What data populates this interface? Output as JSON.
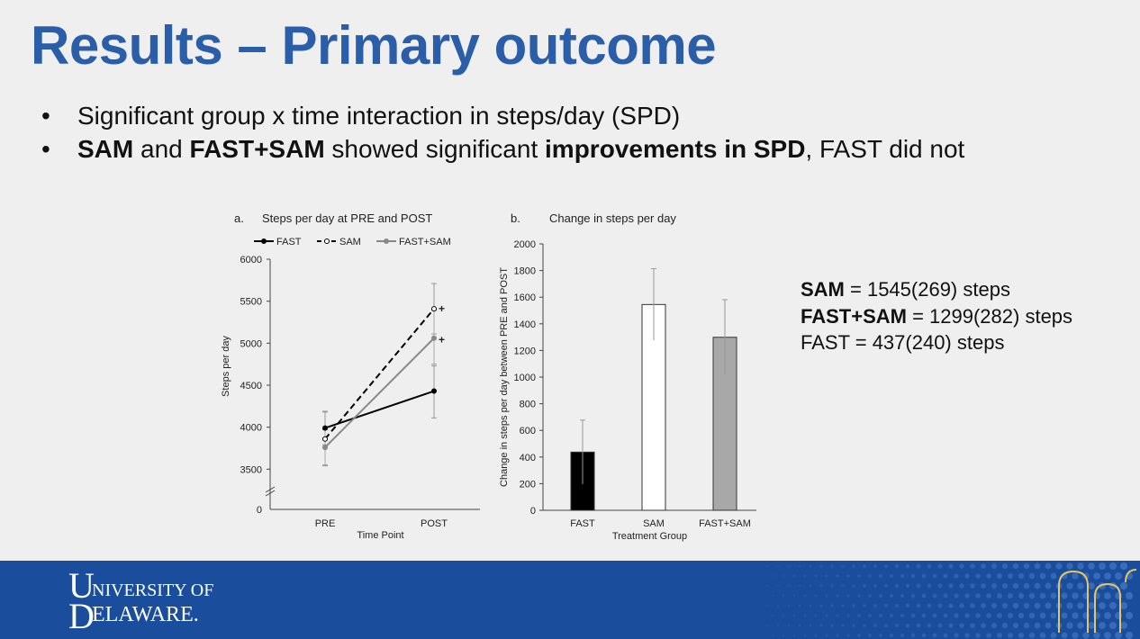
{
  "slide": {
    "title": "Results – Primary outcome",
    "bullets": [
      {
        "segments": [
          {
            "text": "Significant group x time interaction in steps/day (SPD)",
            "bold": false
          }
        ]
      },
      {
        "segments": [
          {
            "text": "SAM",
            "bold": true
          },
          {
            "text": " and ",
            "bold": false
          },
          {
            "text": "FAST+SAM",
            "bold": true
          },
          {
            "text": " showed significant ",
            "bold": false
          },
          {
            "text": "improvements in SPD",
            "bold": true
          },
          {
            "text": ", FAST did not",
            "bold": false
          }
        ]
      }
    ],
    "stats": [
      {
        "label": "SAM",
        "bold": true,
        "rest": " = 1545(269) steps"
      },
      {
        "label": "FAST+SAM",
        "bold": true,
        "rest": " = 1299(282) steps"
      },
      {
        "label": "FAST",
        "bold": false,
        "rest": " = 437(240) steps"
      }
    ],
    "logo": {
      "line1": "UNIVERSITY OF",
      "line2": "DELAWARE.",
      "mark": "UD"
    }
  },
  "chart_data": [
    {
      "type": "line",
      "panel": "a.",
      "title": "Steps per day at PRE and POST",
      "xlabel": "Time Point",
      "ylabel": "Steps per day",
      "categories": [
        "PRE",
        "POST"
      ],
      "ylim": [
        3300,
        6000
      ],
      "yticks": [
        6000,
        5500,
        5000,
        4500,
        4000,
        3500
      ],
      "ybreak_label": "0",
      "legend_position": "top",
      "series": [
        {
          "name": "FAST",
          "values": [
            3990,
            4430
          ],
          "error": [
            200,
            320
          ],
          "color": "#000000",
          "dash": "solid",
          "marker": "filled"
        },
        {
          "name": "SAM",
          "values": [
            3860,
            5410
          ],
          "error": [
            320,
            300
          ],
          "color": "#000000",
          "dash": "dashed",
          "marker": "open"
        },
        {
          "name": "FAST+SAM",
          "values": [
            3760,
            5060
          ],
          "error": [
            210,
            330
          ],
          "color": "#888888",
          "dash": "solid",
          "marker": "filled"
        }
      ],
      "annotations": [
        {
          "text": "+",
          "category": "POST",
          "value": 5410
        },
        {
          "text": "+",
          "category": "POST",
          "value": 5040
        }
      ]
    },
    {
      "type": "bar",
      "panel": "b.",
      "title": "Change in steps per day",
      "xlabel": "Treatment Group",
      "ylabel": "Change in steps per day between PRE and POST",
      "categories": [
        "FAST",
        "SAM",
        "FAST+SAM"
      ],
      "values": [
        437,
        1545,
        1299
      ],
      "error": [
        240,
        269,
        282
      ],
      "colors": [
        "#000000",
        "#ffffff",
        "#a8a8a8"
      ],
      "ylim": [
        0,
        2000
      ],
      "yticks": [
        0,
        200,
        400,
        600,
        800,
        1000,
        1200,
        1400,
        1600,
        1800,
        2000
      ]
    }
  ]
}
